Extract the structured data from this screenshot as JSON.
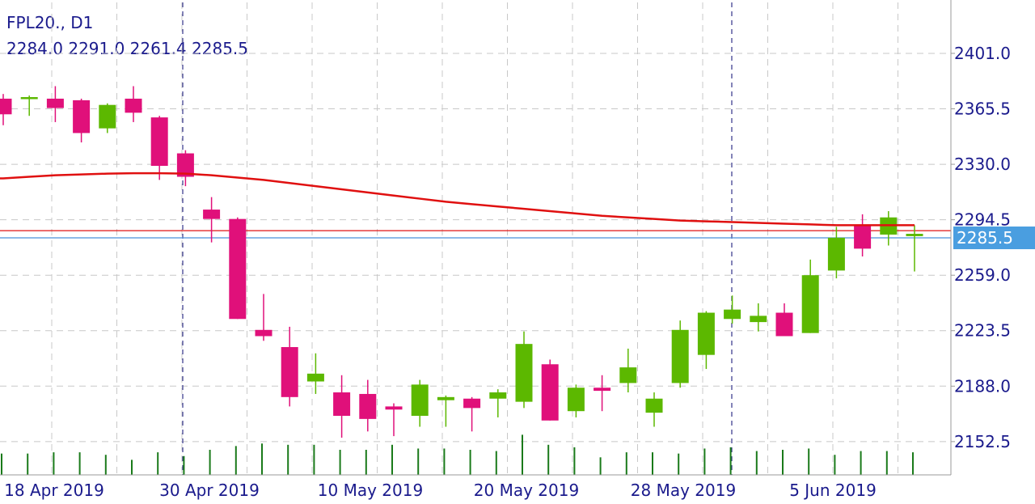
{
  "header": {
    "symbol": "FPL20., D1",
    "ohlc": "2284.0 2291.0 2261.4 2285.5"
  },
  "colors": {
    "bull": "#5cb800",
    "bear": "#e0107a",
    "ma_line": "#e01010",
    "bid_line": "#e01010",
    "ask_line": "#4a90d9",
    "price_label_bg": "#4a9ee0",
    "axis_text": "#1a1a8c",
    "grid": "#c8c8c8",
    "volume": "#1a7a1a"
  },
  "chart_data": {
    "type": "candlestick",
    "ylim": [
      2131.2,
      2433.6
    ],
    "y_ticks": [
      "2401.0",
      "2365.5",
      "2330.0",
      "2294.5",
      "2259.0",
      "2223.5",
      "2188.0",
      "2152.5"
    ],
    "x_labels": [
      "18 Apr 2019",
      "30 Apr 2019",
      "10 May 2019",
      "20 May 2019",
      "28 May 2019",
      "5 Jun 2019"
    ],
    "grid": true,
    "current_price": "2285.5",
    "bid_price": 2287.5,
    "separator_dates": [
      "30 Apr 2019",
      "28 May 2019"
    ],
    "candles": [
      {
        "o": 2372,
        "h": 2375,
        "l": 2355,
        "c": 2362
      },
      {
        "o": 2372,
        "h": 2374,
        "l": 2361,
        "c": 2373
      },
      {
        "o": 2372,
        "h": 2380,
        "l": 2357,
        "c": 2366
      },
      {
        "o": 2371,
        "h": 2372,
        "l": 2344,
        "c": 2350
      },
      {
        "o": 2353,
        "h": 2369,
        "l": 2350,
        "c": 2368
      },
      {
        "o": 2372,
        "h": 2380,
        "l": 2357,
        "c": 2363
      },
      {
        "o": 2360,
        "h": 2361,
        "l": 2320,
        "c": 2329
      },
      {
        "o": 2337,
        "h": 2339,
        "l": 2316,
        "c": 2322
      },
      {
        "o": 2301,
        "h": 2309,
        "l": 2280,
        "c": 2295
      },
      {
        "o": 2295,
        "h": 2296,
        "l": 2231,
        "c": 2231
      },
      {
        "o": 2224,
        "h": 2247,
        "l": 2217,
        "c": 2220
      },
      {
        "o": 2213,
        "h": 2226,
        "l": 2175,
        "c": 2181
      },
      {
        "o": 2191,
        "h": 2209,
        "l": 2183,
        "c": 2196
      },
      {
        "o": 2184,
        "h": 2195,
        "l": 2155,
        "c": 2169
      },
      {
        "o": 2183,
        "h": 2192,
        "l": 2159,
        "c": 2167
      },
      {
        "o": 2175,
        "h": 2177,
        "l": 2156,
        "c": 2173
      },
      {
        "o": 2169,
        "h": 2192,
        "l": 2162,
        "c": 2189
      },
      {
        "o": 2179,
        "h": 2182,
        "l": 2162,
        "c": 2181
      },
      {
        "o": 2180,
        "h": 2181,
        "l": 2159,
        "c": 2174
      },
      {
        "o": 2180,
        "h": 2186,
        "l": 2168,
        "c": 2184
      },
      {
        "o": 2178,
        "h": 2223,
        "l": 2174,
        "c": 2215
      },
      {
        "o": 2202,
        "h": 2205,
        "l": 2166,
        "c": 2166
      },
      {
        "o": 2172,
        "h": 2189,
        "l": 2168,
        "c": 2187
      },
      {
        "o": 2187,
        "h": 2195,
        "l": 2172,
        "c": 2185
      },
      {
        "o": 2190,
        "h": 2212,
        "l": 2184,
        "c": 2200
      },
      {
        "o": 2171,
        "h": 2184,
        "l": 2162,
        "c": 2180
      },
      {
        "o": 2190,
        "h": 2230,
        "l": 2187,
        "c": 2224
      },
      {
        "o": 2208,
        "h": 2236,
        "l": 2199,
        "c": 2235
      },
      {
        "o": 2231,
        "h": 2246,
        "l": 2228,
        "c": 2237
      },
      {
        "o": 2229,
        "h": 2241,
        "l": 2223,
        "c": 2233
      },
      {
        "o": 2235,
        "h": 2241,
        "l": 2220,
        "c": 2220
      },
      {
        "o": 2222,
        "h": 2269,
        "l": 2222,
        "c": 2259
      },
      {
        "o": 2262,
        "h": 2290,
        "l": 2257,
        "c": 2283
      },
      {
        "o": 2291,
        "h": 2298,
        "l": 2271,
        "c": 2276
      },
      {
        "o": 2285,
        "h": 2300,
        "l": 2278,
        "c": 2296
      },
      {
        "o": 2284,
        "h": 2291,
        "l": 2261.4,
        "c": 2285.5
      }
    ],
    "ma": [
      2321,
      2322,
      2323,
      2323.5,
      2324,
      2324.3,
      2324.3,
      2324,
      2323,
      2321.5,
      2320,
      2318,
      2316,
      2314,
      2312,
      2310,
      2308,
      2306,
      2304.5,
      2303,
      2301.5,
      2300,
      2298.5,
      2297,
      2296,
      2295,
      2294,
      2293.5,
      2293,
      2292.5,
      2292,
      2291.5,
      2291,
      2291,
      2291,
      2291
    ],
    "volume": [
      0.85,
      0.85,
      0.9,
      0.9,
      0.8,
      0.6,
      0.9,
      0.75,
      1.0,
      1.15,
      1.25,
      1.2,
      1.2,
      1.0,
      1.0,
      1.2,
      1.05,
      1.05,
      1.0,
      0.95,
      1.6,
      1.2,
      1.1,
      0.7,
      0.9,
      0.9,
      0.85,
      1.05,
      1.1,
      0.95,
      1.0,
      1.05,
      0.8,
      0.95,
      0.95,
      0.9
    ]
  }
}
